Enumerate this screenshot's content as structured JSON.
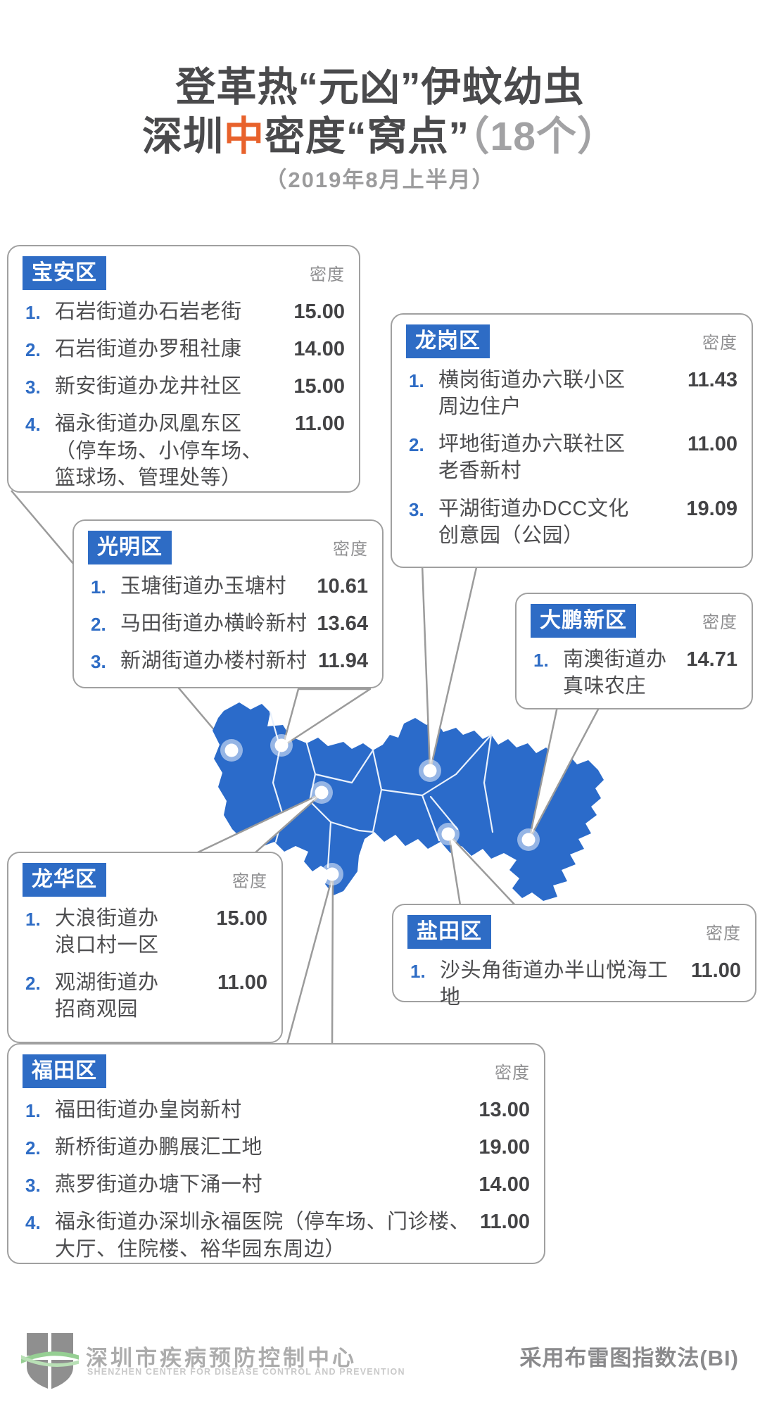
{
  "page": {
    "title_line1": "登革热“元凶”伊蚊幼虫",
    "title_line2_prefix": "深圳",
    "title_line2_highlight": "中",
    "title_line2_suffix": "密度“窝点”",
    "title_line2_count": "（18个）",
    "subtitle": "（2019年8月上半月）",
    "method_note": "采用布雷图指数法(BI)",
    "org_name_cn": "深圳市疾病预防控制中心",
    "org_name_en": "SHENZHEN CENTER FOR DISEASE CONTROL AND PREVENTION"
  },
  "density_label": "密度",
  "colors": {
    "accent_blue": "#2e6cc5",
    "map_blue": "#2b6bca",
    "highlight_orange": "#e8622c",
    "title_gray": "#4a4a4c",
    "muted_gray": "#9b9b9c",
    "logo_green": "#96cf93"
  },
  "boxes": {
    "baoan": {
      "label": "宝安区",
      "items": [
        {
          "num": "1.",
          "lines": [
            "石岩街道办石岩老街"
          ],
          "value": "15.00"
        },
        {
          "num": "2.",
          "lines": [
            "石岩街道办罗租社康"
          ],
          "value": "14.00"
        },
        {
          "num": "3.",
          "lines": [
            "新安街道办龙井社区"
          ],
          "value": "15.00"
        },
        {
          "num": "4.",
          "lines": [
            "福永街道办凤凰东区",
            "（停车场、小停车场、",
            "篮球场、管理处等）"
          ],
          "value": "11.00"
        }
      ]
    },
    "longgang": {
      "label": "龙岗区",
      "items": [
        {
          "num": "1.",
          "lines": [
            "横岗街道办六联小区",
            "周边住户"
          ],
          "value": "11.43"
        },
        {
          "num": "2.",
          "lines": [
            "坪地街道办六联社区",
            "老香新村"
          ],
          "value": "11.00"
        },
        {
          "num": "3.",
          "lines": [
            "平湖街道办DCC文化",
            "创意园（公园）"
          ],
          "value": "19.09"
        }
      ]
    },
    "guangming": {
      "label": "光明区",
      "items": [
        {
          "num": "1.",
          "lines": [
            "玉塘街道办玉塘村"
          ],
          "value": "10.61"
        },
        {
          "num": "2.",
          "lines": [
            "马田街道办横岭新村"
          ],
          "value": "13.64"
        },
        {
          "num": "3.",
          "lines": [
            "新湖街道办楼村新村"
          ],
          "value": "11.94"
        }
      ]
    },
    "dapeng": {
      "label": "大鹏新区",
      "items": [
        {
          "num": "1.",
          "lines": [
            "南澳街道办",
            "真味农庄"
          ],
          "value": "14.71"
        }
      ]
    },
    "longhua": {
      "label": "龙华区",
      "items": [
        {
          "num": "1.",
          "lines": [
            "大浪街道办",
            "浪口村一区"
          ],
          "value": "15.00"
        },
        {
          "num": "2.",
          "lines": [
            "观湖街道办",
            "招商观园"
          ],
          "value": "11.00"
        }
      ]
    },
    "yantian": {
      "label": "盐田区",
      "items": [
        {
          "num": "1.",
          "lines": [
            "沙头角街道办半山悦海工地"
          ],
          "value": "11.00"
        }
      ]
    },
    "futian": {
      "label": "福田区",
      "items": [
        {
          "num": "1.",
          "lines": [
            "福田街道办皇岗新村"
          ],
          "value": "13.00"
        },
        {
          "num": "2.",
          "lines": [
            "新桥街道办鹏展汇工地"
          ],
          "value": "19.00"
        },
        {
          "num": "3.",
          "lines": [
            "燕罗街道办塘下涌一村"
          ],
          "value": "14.00"
        },
        {
          "num": "4.",
          "lines": [
            "福永街道办深圳永福医院（停车场、门诊楼、",
            "大厅、住院楼、裕华园东周边）"
          ],
          "value": "11.00"
        }
      ]
    }
  },
  "map": {
    "dots": [
      "宝安区",
      "光明区",
      "龙华区",
      "福田区",
      "龙岗区",
      "盐田区",
      "大鹏新区"
    ]
  }
}
